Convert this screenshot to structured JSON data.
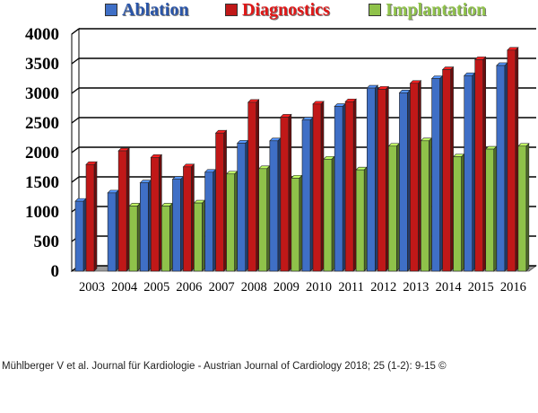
{
  "chart_data": {
    "type": "bar",
    "title": "",
    "xlabel": "",
    "ylabel": "",
    "ylim": [
      0,
      4000
    ],
    "yticks": [
      "0",
      "500",
      "1000",
      "1500",
      "2000",
      "2500",
      "3000",
      "3500",
      "4000"
    ],
    "grid": true,
    "legend_position": "top",
    "categories": [
      "2003",
      "2004",
      "2005",
      "2006",
      "2007",
      "2008",
      "2009",
      "2010",
      "2011",
      "2012",
      "2013",
      "2014",
      "2015",
      "2016"
    ],
    "series": [
      {
        "name": "Ablation",
        "color": "#3f6fc6",
        "values": [
          1180,
          1320,
          1490,
          1550,
          1670,
          2160,
          2200,
          2550,
          2780,
          3090,
          3010,
          3250,
          3300,
          3470
        ]
      },
      {
        "name": "Diagnostics",
        "color": "#c01818",
        "values": [
          1800,
          2030,
          1920,
          1760,
          2330,
          2850,
          2600,
          2820,
          2860,
          3070,
          3170,
          3400,
          3570,
          3730
        ]
      },
      {
        "name": "Implantation",
        "color": "#8fc24a",
        "values": [
          0,
          1100,
          1100,
          1150,
          1640,
          1730,
          1570,
          1890,
          1710,
          2110,
          2200,
          1930,
          2060,
          2110
        ]
      }
    ],
    "legend_colors": {
      "Ablation": "#2a55a8",
      "Diagnostics": "#e01818",
      "Implantation": "#8fc24a"
    }
  },
  "citation": "Mühlberger V et al. Journal für Kardiologie - Austrian Journal of Cardiology 2018; 25 (1-2): 9-15 ©"
}
